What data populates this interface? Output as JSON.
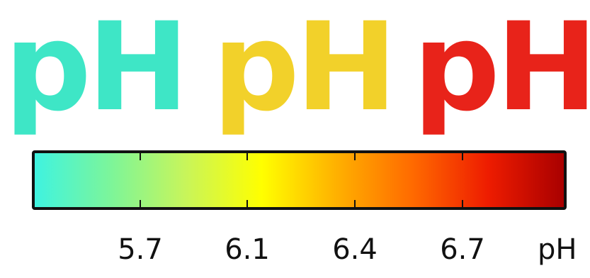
{
  "words": [
    {
      "text": "pH",
      "color": "#3ee6c6"
    },
    {
      "text": "pH",
      "color": "#f2d12a"
    },
    {
      "text": "pH",
      "color": "#e8231a"
    }
  ],
  "colorbar": {
    "gradient": [
      "#3ff3e0",
      "#7cf59a",
      "#c8f55a",
      "#ffff00",
      "#ffb000",
      "#ff6a00",
      "#ee1c00",
      "#a90000"
    ],
    "ticks": [
      {
        "label": "5.7",
        "value": 5.7
      },
      {
        "label": "6.1",
        "value": 6.1
      },
      {
        "label": "6.4",
        "value": 6.4
      },
      {
        "label": "6.7",
        "value": 6.7
      }
    ],
    "unit": "pH"
  }
}
